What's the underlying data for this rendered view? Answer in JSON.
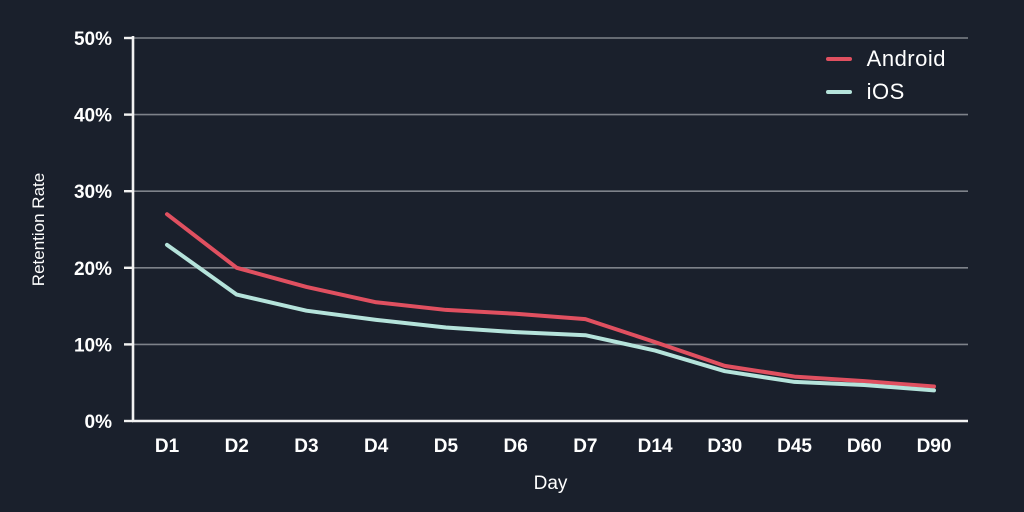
{
  "colors": {
    "background": "#1a202c",
    "grid": "#7e828a",
    "axis": "#f2f2f2",
    "text": "#ffffff",
    "android_line": "#e05060",
    "ios_line": "#b5e3db"
  },
  "chart_data": {
    "type": "line",
    "categories": [
      "D1",
      "D2",
      "D3",
      "D4",
      "D5",
      "D6",
      "D7",
      "D14",
      "D30",
      "D45",
      "D60",
      "D90"
    ],
    "series": [
      {
        "name": "Android",
        "color": "#e05060",
        "values": [
          27,
          20,
          17.5,
          15.5,
          14.5,
          14,
          13.3,
          10.3,
          7.2,
          5.8,
          5.2,
          4.5
        ]
      },
      {
        "name": "iOS",
        "color": "#b5e3db",
        "values": [
          23,
          16.5,
          14.4,
          13.2,
          12.2,
          11.6,
          11.2,
          9.2,
          6.5,
          5.1,
          4.7,
          4.0
        ]
      }
    ],
    "title": "",
    "xlabel": "Day",
    "ylabel": "Retention Rate",
    "ylim": [
      0,
      50
    ],
    "yticks": [
      0,
      10,
      20,
      30,
      40,
      50
    ],
    "ytick_suffix": "%",
    "grid": true,
    "legend_position": "top-right"
  }
}
